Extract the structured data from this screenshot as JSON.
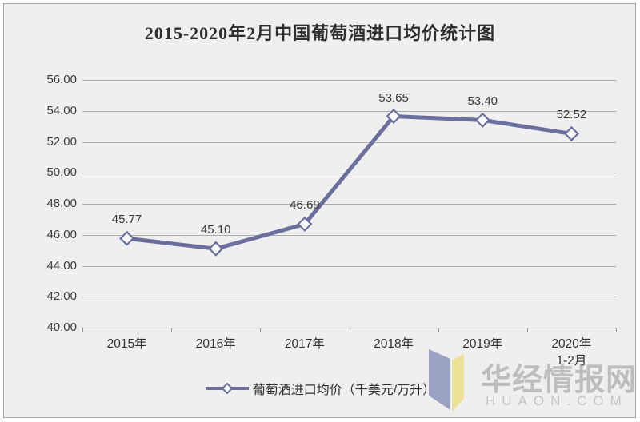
{
  "title": "2015-2020年2月中国葡萄酒进口均价统计图",
  "legend": {
    "label": "葡萄酒进口均价（千美元/万升）"
  },
  "watermark": {
    "cn": "华经情报网",
    "en": "HUAON.COM"
  },
  "colors": {
    "background": "#f0efef",
    "line": "#6a6f9e",
    "marker_fill": "#fafafa",
    "grid": "#acacac",
    "axis": "#8f8f8f",
    "logo_blue": "#9ba2c2",
    "logo_yellow": "#ebe298"
  },
  "chart_data": {
    "type": "line",
    "title": "2015-2020年2月中国葡萄酒进口均价统计图",
    "categories": [
      "2015年",
      "2016年",
      "2017年",
      "2018年",
      "2019年",
      "2020年"
    ],
    "category_sublabels": [
      "",
      "",
      "",
      "",
      "",
      "1-2月"
    ],
    "series": [
      {
        "name": "葡萄酒进口均价（千美元/万升）",
        "values": [
          45.77,
          45.1,
          46.69,
          53.65,
          53.4,
          52.52
        ]
      }
    ],
    "value_labels": [
      "45.77",
      "45.10",
      "46.69",
      "53.65",
      "53.40",
      "52.52"
    ],
    "ylabel": "",
    "xlabel": "",
    "ylim": [
      40,
      56
    ],
    "ytick_step": 2,
    "ytick_labels": [
      "56.00",
      "54.00",
      "52.00",
      "50.00",
      "48.00",
      "46.00",
      "44.00",
      "42.00",
      "40.00"
    ],
    "grid": true,
    "legend_position": "bottom",
    "marker": "diamond"
  }
}
